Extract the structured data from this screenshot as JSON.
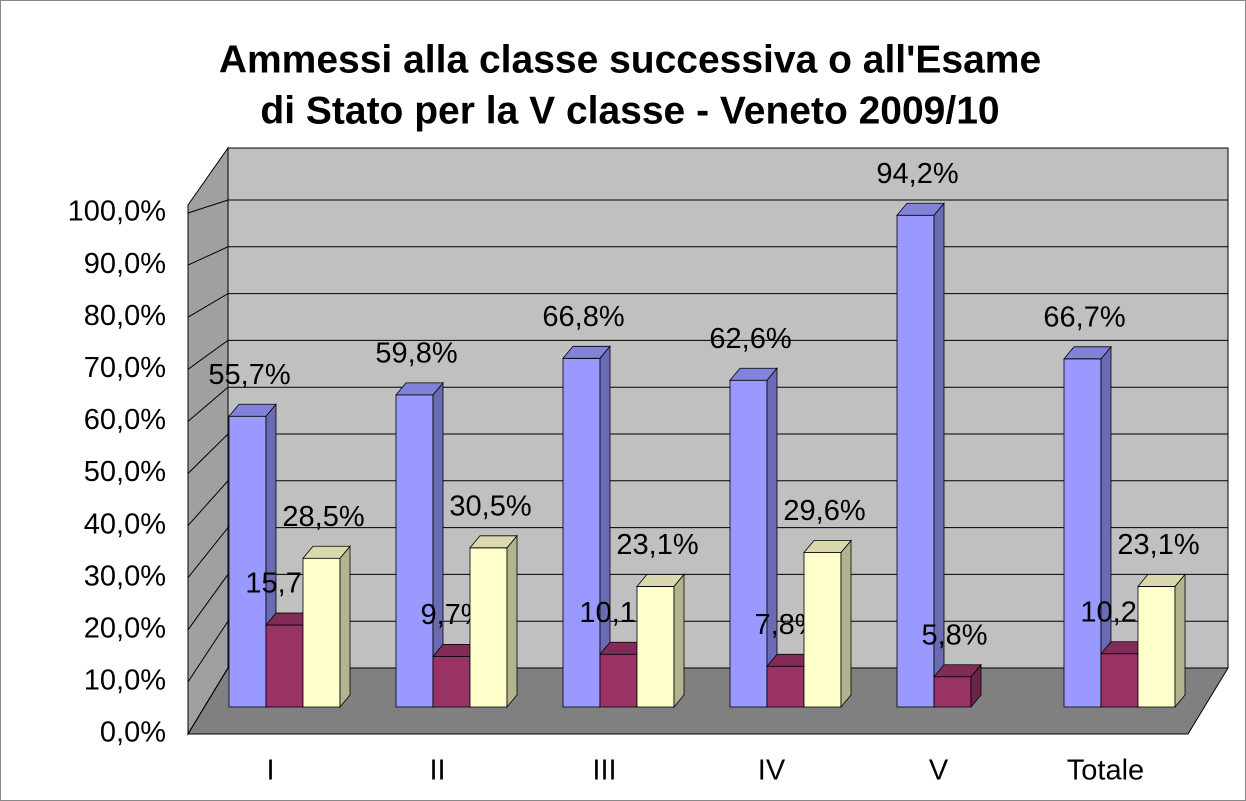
{
  "chart_data": {
    "type": "bar3d",
    "title": [
      "Ammessi alla classe successiva o all'Esame",
      "di Stato per la V classe - Veneto 2009/10"
    ],
    "categories": [
      "I",
      "II",
      "III",
      "IV",
      "V",
      "Totale"
    ],
    "series": [
      {
        "color": "#9999ff",
        "values": [
          55.7,
          59.8,
          66.8,
          62.6,
          94.2,
          66.7
        ],
        "value_labels": [
          "55,7%",
          "59,8%",
          "66,8%",
          "62,6%",
          "94,2%",
          "66,7%"
        ]
      },
      {
        "color": "#993366",
        "values": [
          15.7,
          9.7,
          10.1,
          7.8,
          5.8,
          10.2
        ],
        "value_labels": [
          "15,7%",
          "9,7%",
          "10,1%",
          "7,8%",
          "5,8%",
          "10,2%"
        ]
      },
      {
        "color": "#ffffcc",
        "values": [
          28.5,
          30.5,
          23.1,
          29.6,
          null,
          23.1
        ],
        "value_labels": [
          "28,5%",
          "30,5%",
          "23,1%",
          "29,6%",
          null,
          "23,1%"
        ]
      }
    ],
    "ylim": [
      0,
      100
    ],
    "yticks": [
      {
        "value": 0,
        "label": "0,0%"
      },
      {
        "value": 10,
        "label": "10,0%"
      },
      {
        "value": 20,
        "label": "20,0%"
      },
      {
        "value": 30,
        "label": "30,0%"
      },
      {
        "value": 40,
        "label": "40,0%"
      },
      {
        "value": 50,
        "label": "50,0%"
      },
      {
        "value": 60,
        "label": "60,0%"
      },
      {
        "value": 70,
        "label": "70,0%"
      },
      {
        "value": 80,
        "label": "80,0%"
      },
      {
        "value": 90,
        "label": "90,0%"
      },
      {
        "value": 100,
        "label": "100,0%"
      }
    ],
    "grid": true
  }
}
